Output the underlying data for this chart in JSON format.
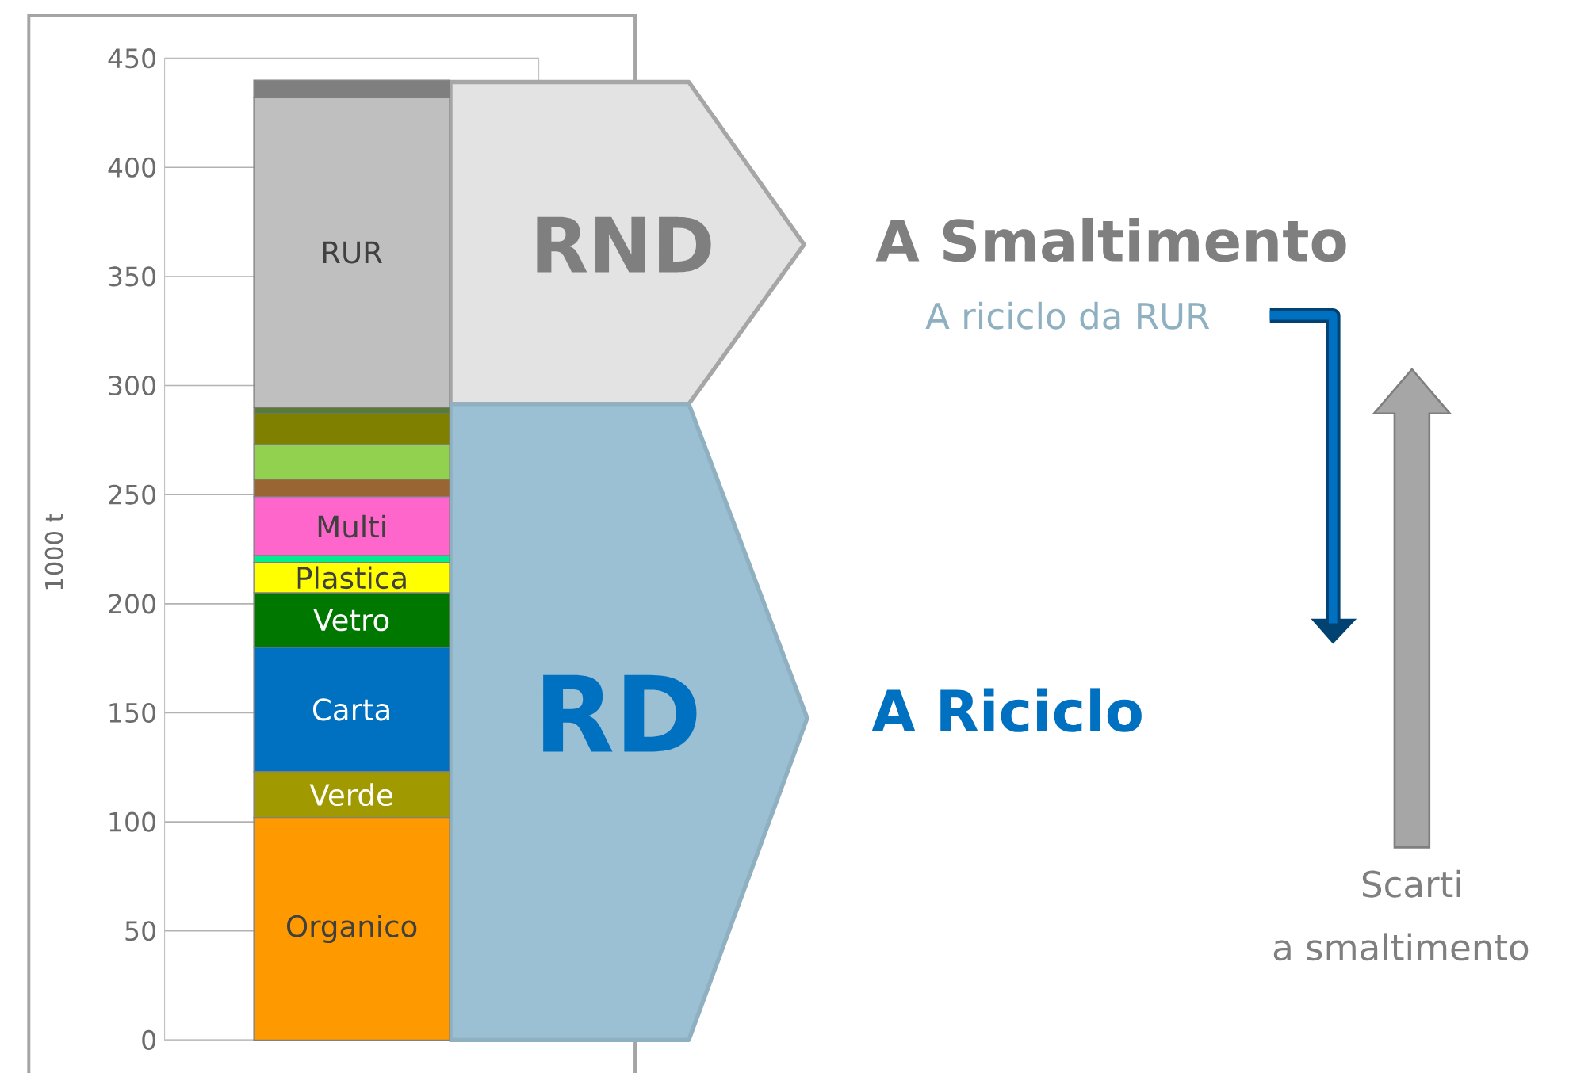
{
  "chart_data": {
    "type": "bar",
    "stacked": true,
    "ylabel": "1000 t",
    "categories": [
      null
    ],
    "series": [
      {
        "name": "Organico",
        "color": "#ff9900",
        "values": [
          102
        ]
      },
      {
        "name": "Verde",
        "color": "#a09a00",
        "values": [
          21
        ]
      },
      {
        "name": "Carta",
        "color": "#0070c0",
        "values": [
          57
        ]
      },
      {
        "name": "Vetro",
        "color": "#007800",
        "values": [
          25
        ]
      },
      {
        "name": "Plastica",
        "color": "#ffff00",
        "values": [
          14
        ]
      },
      {
        "color": "#00ee90",
        "values": [
          3
        ]
      },
      {
        "name": "Multi",
        "color": "#ff66cc",
        "values": [
          27
        ]
      },
      {
        "color": "#996633",
        "values": [
          8
        ]
      },
      {
        "color": "#92d050",
        "values": [
          16
        ]
      },
      {
        "color": "#7f7f00",
        "values": [
          14
        ]
      },
      {
        "color": "#5a7a3a",
        "values": [
          3
        ]
      },
      {
        "name": "RUR",
        "color": "#bfbfbf",
        "values": [
          142
        ]
      },
      {
        "color": "#7f7f7f",
        "values": [
          8
        ]
      }
    ],
    "ylim": [
      0,
      450
    ],
    "yticks": [
      0,
      50,
      100,
      150,
      200,
      250,
      300,
      350,
      400,
      450
    ],
    "grid": "y",
    "annotations": [
      "RND",
      "A Smaltimento",
      "A riciclo da RUR",
      "RD",
      "A Riciclo",
      "Scarti",
      "a smaltimento"
    ]
  }
}
